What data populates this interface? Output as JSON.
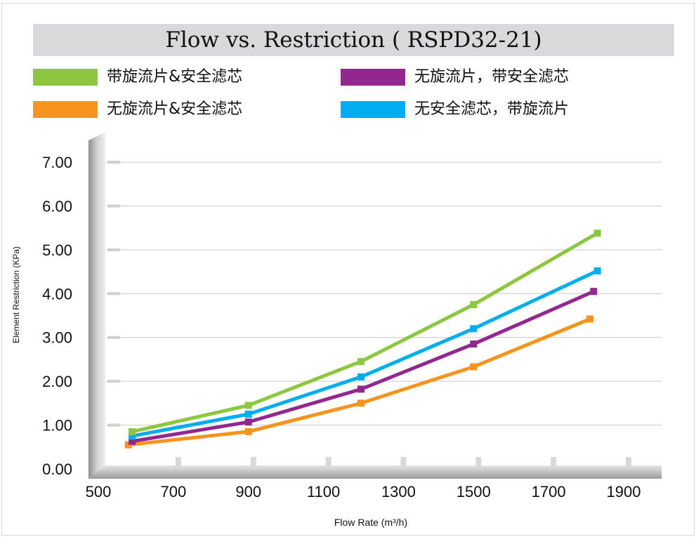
{
  "chart_data": {
    "type": "line",
    "title": "Flow vs. Restriction ( RSPD32-21)",
    "xlabel": "Flow Rate (m³/h)",
    "ylabel": "Element Restriction (KPa)",
    "xlim": [
      500,
      1900
    ],
    "ylim": [
      0,
      7
    ],
    "x_ticks": [
      "500",
      "700",
      "900",
      "1100",
      "1300",
      "1500",
      "1700",
      "1900"
    ],
    "y_ticks": [
      "0.00",
      "1.00",
      "2.00",
      "3.00",
      "4.00",
      "5.00",
      "6.00",
      "7.00"
    ],
    "grid": true,
    "legend_position": "top",
    "series": [
      {
        "name": "带旋流片&安全滤芯",
        "color": "#8dc63f",
        "x": [
          590,
          900,
          1200,
          1500,
          1830
        ],
        "y": [
          0.85,
          1.45,
          2.45,
          3.75,
          5.38
        ]
      },
      {
        "name": "无旋流片，带安全滤芯",
        "color": "#92278f",
        "x": [
          590,
          900,
          1200,
          1500,
          1820
        ],
        "y": [
          0.63,
          1.07,
          1.82,
          2.85,
          4.05
        ]
      },
      {
        "name": "无旋流片&安全滤芯",
        "color": "#f7941d",
        "x": [
          580,
          900,
          1200,
          1500,
          1810
        ],
        "y": [
          0.55,
          0.85,
          1.5,
          2.33,
          3.42
        ]
      },
      {
        "name": "无安全滤芯，带旋流片",
        "color": "#00aeef",
        "x": [
          590,
          900,
          1200,
          1500,
          1830
        ],
        "y": [
          0.75,
          1.25,
          2.1,
          3.2,
          4.52
        ]
      }
    ]
  }
}
